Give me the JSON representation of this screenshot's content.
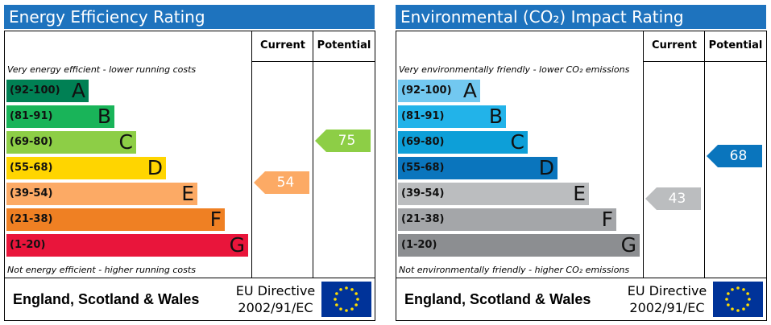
{
  "panels": [
    {
      "title": "Energy Efficiency Rating",
      "columns": [
        "Current",
        "Potential"
      ],
      "top_note": "Very energy efficient - lower running costs",
      "bottom_note": "Not energy efficient - higher running costs",
      "bands": [
        {
          "range": "(92-100)",
          "letter": "A",
          "color": "#008054"
        },
        {
          "range": "(81-91)",
          "letter": "B",
          "color": "#19b459"
        },
        {
          "range": "(69-80)",
          "letter": "C",
          "color": "#8dce46"
        },
        {
          "range": "(55-68)",
          "letter": "D",
          "color": "#ffd500"
        },
        {
          "range": "(39-54)",
          "letter": "E",
          "color": "#fcaa65"
        },
        {
          "range": "(21-38)",
          "letter": "F",
          "color": "#ef8023"
        },
        {
          "range": "(1-20)",
          "letter": "G",
          "color": "#e9153b"
        }
      ],
      "current": 54,
      "current_color": "#fcaa65",
      "potential": 75,
      "potential_color": "#8dce46",
      "footer": {
        "region": "England, Scotland & Wales",
        "directive": "EU Directive",
        "code": "2002/91/EC"
      }
    },
    {
      "title": "Environmental (CO₂) Impact Rating",
      "columns": [
        "Current",
        "Potential"
      ],
      "top_note": "Very environmentally friendly - lower CO₂ emissions",
      "bottom_note": "Not environmentally friendly - higher CO₂ emissions",
      "bands": [
        {
          "range": "(92-100)",
          "letter": "A",
          "color": "#72c8f0"
        },
        {
          "range": "(81-91)",
          "letter": "B",
          "color": "#22b3e9"
        },
        {
          "range": "(69-80)",
          "letter": "C",
          "color": "#0d9fd8"
        },
        {
          "range": "(55-68)",
          "letter": "D",
          "color": "#0a75bd"
        },
        {
          "range": "(39-54)",
          "letter": "E",
          "color": "#bbbdbf"
        },
        {
          "range": "(21-38)",
          "letter": "F",
          "color": "#a4a6a9"
        },
        {
          "range": "(1-20)",
          "letter": "G",
          "color": "#8c8e91"
        }
      ],
      "current": 43,
      "current_color": "#bbbdbf",
      "potential": 68,
      "potential_color": "#0a75bd",
      "footer": {
        "region": "England, Scotland & Wales",
        "directive": "EU Directive",
        "code": "2002/91/EC"
      }
    }
  ]
}
